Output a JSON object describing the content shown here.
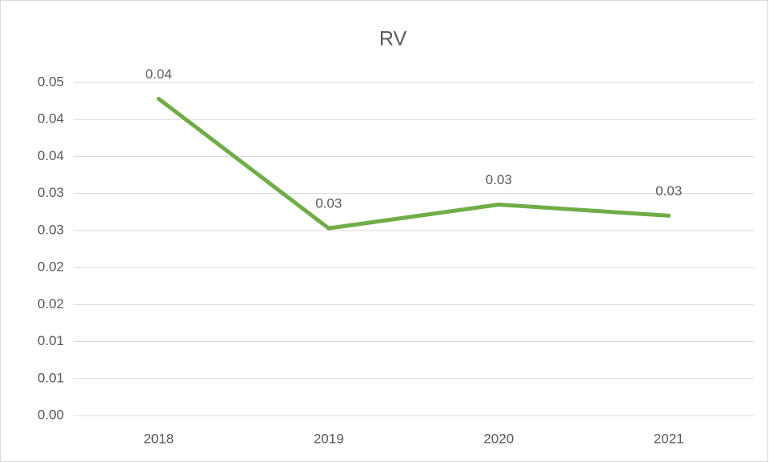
{
  "chart_data": {
    "type": "line",
    "title": "RV",
    "categories": [
      "2018",
      "2019",
      "2020",
      "2021"
    ],
    "series": [
      {
        "name": "RV",
        "color": "#70ad47",
        "values": [
          0.0428,
          0.0253,
          0.0285,
          0.027
        ],
        "value_labels": [
          "0.04",
          "0.03",
          "0.03",
          "0.03"
        ]
      }
    ],
    "ylim": [
      0,
      0.045
    ],
    "yticks": [
      {
        "value": 0,
        "label": "0.00"
      },
      {
        "value": 0.005,
        "label": "0.01"
      },
      {
        "value": 0.01,
        "label": "0.01"
      },
      {
        "value": 0.015,
        "label": "0.02"
      },
      {
        "value": 0.02,
        "label": "0.02"
      },
      {
        "value": 0.025,
        "label": "0.03"
      },
      {
        "value": 0.03,
        "label": "0.03"
      },
      {
        "value": 0.035,
        "label": "0.04"
      },
      {
        "value": 0.04,
        "label": "0.04"
      },
      {
        "value": 0.045,
        "label": "0.05"
      }
    ],
    "grid": true
  }
}
